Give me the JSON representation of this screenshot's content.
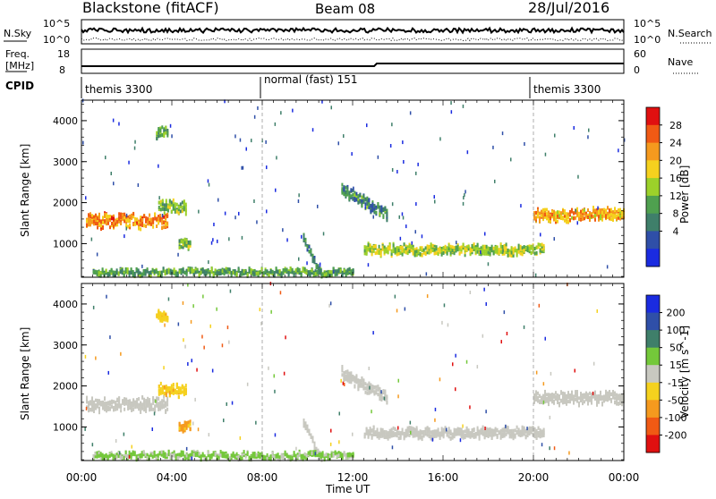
{
  "header": {
    "station": "Blackstone (fitACF)",
    "beam": "Beam 08",
    "date": "28/Jul/2016"
  },
  "top_panels": {
    "nsky_label": "N.Sky",
    "nsearch_label": "N.Search",
    "nsky_ticks": [
      "10^5",
      "10^0"
    ],
    "nsearch_ticks": [
      "10^5",
      "10^0"
    ],
    "freq_label": "Freq.",
    "freq_unit": "[MHz]",
    "freq_ticks": [
      "18",
      "8"
    ],
    "nave_label": "Nave",
    "nave_ticks": [
      "60",
      "0"
    ],
    "cpid_label": "CPID",
    "cpid_segments": [
      {
        "label": "themis 3300",
        "start_hour": 0,
        "end_hour": 8
      },
      {
        "label": "normal (fast) 151",
        "start_hour": 8,
        "end_hour": 20
      },
      {
        "label": "themis 3300",
        "start_hour": 20,
        "end_hour": 24
      }
    ]
  },
  "x_axis": {
    "label": "Time UT",
    "ticks": [
      "00:00",
      "04:00",
      "08:00",
      "12:00",
      "16:00",
      "20:00",
      "00:00"
    ]
  },
  "power_panel": {
    "ylabel": "Slant Range [km]",
    "yticks": [
      "1000",
      "2000",
      "3000",
      "4000"
    ],
    "colorbar_label": "Power [dB]",
    "colorbar_ticks": [
      "4",
      "8",
      "12",
      "16",
      "20",
      "24",
      "28"
    ],
    "colorbar_colors": [
      "#1a2be0",
      "#2f4fa8",
      "#3f7f6a",
      "#4fa04f",
      "#9cd12a",
      "#f5d11e",
      "#f59a1e",
      "#f05a14",
      "#e01010"
    ]
  },
  "velocity_panel": {
    "ylabel": "Slant Range [km]",
    "yticks": [
      "1000",
      "2000",
      "3000",
      "4000"
    ],
    "colorbar_label": "Velocity [m s^-1]",
    "colorbar_ticks": [
      "200",
      "100",
      "50",
      "15",
      "-15",
      "-50",
      "-100",
      "-200"
    ],
    "colorbar_colors": [
      "#1a2be0",
      "#2f4fa8",
      "#3f7f6a",
      "#74c83a",
      "#c8c8c0",
      "#f5d11e",
      "#f59a1e",
      "#f05a14",
      "#e01010"
    ]
  },
  "chart_data": [
    {
      "type": "heatmap",
      "title": "Power [dB]",
      "xlabel": "Time UT",
      "ylabel": "Slant Range [km]",
      "x_range_hours": [
        0,
        24
      ],
      "ylim": [
        180,
        4500
      ],
      "colorbar_range": [
        0,
        32
      ],
      "features": [
        {
          "t0": 0.2,
          "t1": 3.8,
          "range_km": 1550,
          "spread_km": 300,
          "power_db": 24
        },
        {
          "t0": 3.4,
          "t1": 4.6,
          "range_km": 1900,
          "spread_km": 250,
          "power_db": 14
        },
        {
          "t0": 3.3,
          "t1": 3.8,
          "range_km": 3700,
          "spread_km": 200,
          "power_db": 14
        },
        {
          "t0": 4.3,
          "t1": 4.8,
          "range_km": 1000,
          "spread_km": 200,
          "power_db": 14
        },
        {
          "t0": 9.8,
          "t1": 10.6,
          "range_km": 1100,
          "spread_km": 150,
          "power_db": 10
        },
        {
          "t0": 11.5,
          "t1": 13.5,
          "range_km": 2300,
          "spread_km": 250,
          "power_db": 10
        },
        {
          "t0": 12.5,
          "t1": 20.5,
          "range_km": 850,
          "spread_km": 200,
          "power_db": 16
        },
        {
          "t0": 20.0,
          "t1": 24.0,
          "range_km": 1700,
          "spread_km": 250,
          "power_db": 22
        },
        {
          "t0": 0.5,
          "t1": 12.0,
          "range_km": 300,
          "spread_km": 100,
          "power_db": 12
        }
      ]
    },
    {
      "type": "heatmap",
      "title": "Velocity [m s^-1]",
      "xlabel": "Time UT",
      "ylabel": "Slant Range [km]",
      "x_range_hours": [
        0,
        24
      ],
      "ylim": [
        180,
        4500
      ],
      "colorbar_range": [
        -200,
        200
      ],
      "features": [
        {
          "t0": 0.2,
          "t1": 3.8,
          "range_km": 1550,
          "spread_km": 300,
          "velocity": 0
        },
        {
          "t0": 3.4,
          "t1": 4.6,
          "range_km": 1900,
          "spread_km": 250,
          "velocity": -50
        },
        {
          "t0": 3.3,
          "t1": 3.8,
          "range_km": 3700,
          "spread_km": 200,
          "velocity": -50
        },
        {
          "t0": 4.3,
          "t1": 4.8,
          "range_km": 1000,
          "spread_km": 200,
          "velocity": -80
        },
        {
          "t0": 9.8,
          "t1": 10.6,
          "range_km": 1100,
          "spread_km": 150,
          "velocity": 0
        },
        {
          "t0": 11.5,
          "t1": 13.5,
          "range_km": 2300,
          "spread_km": 250,
          "velocity": 0
        },
        {
          "t0": 12.5,
          "t1": 20.5,
          "range_km": 850,
          "spread_km": 200,
          "velocity": 0
        },
        {
          "t0": 20.0,
          "t1": 24.0,
          "range_km": 1700,
          "spread_km": 250,
          "velocity": 0
        },
        {
          "t0": 0.5,
          "t1": 12.0,
          "range_km": 300,
          "spread_km": 100,
          "velocity": 30
        }
      ]
    }
  ]
}
